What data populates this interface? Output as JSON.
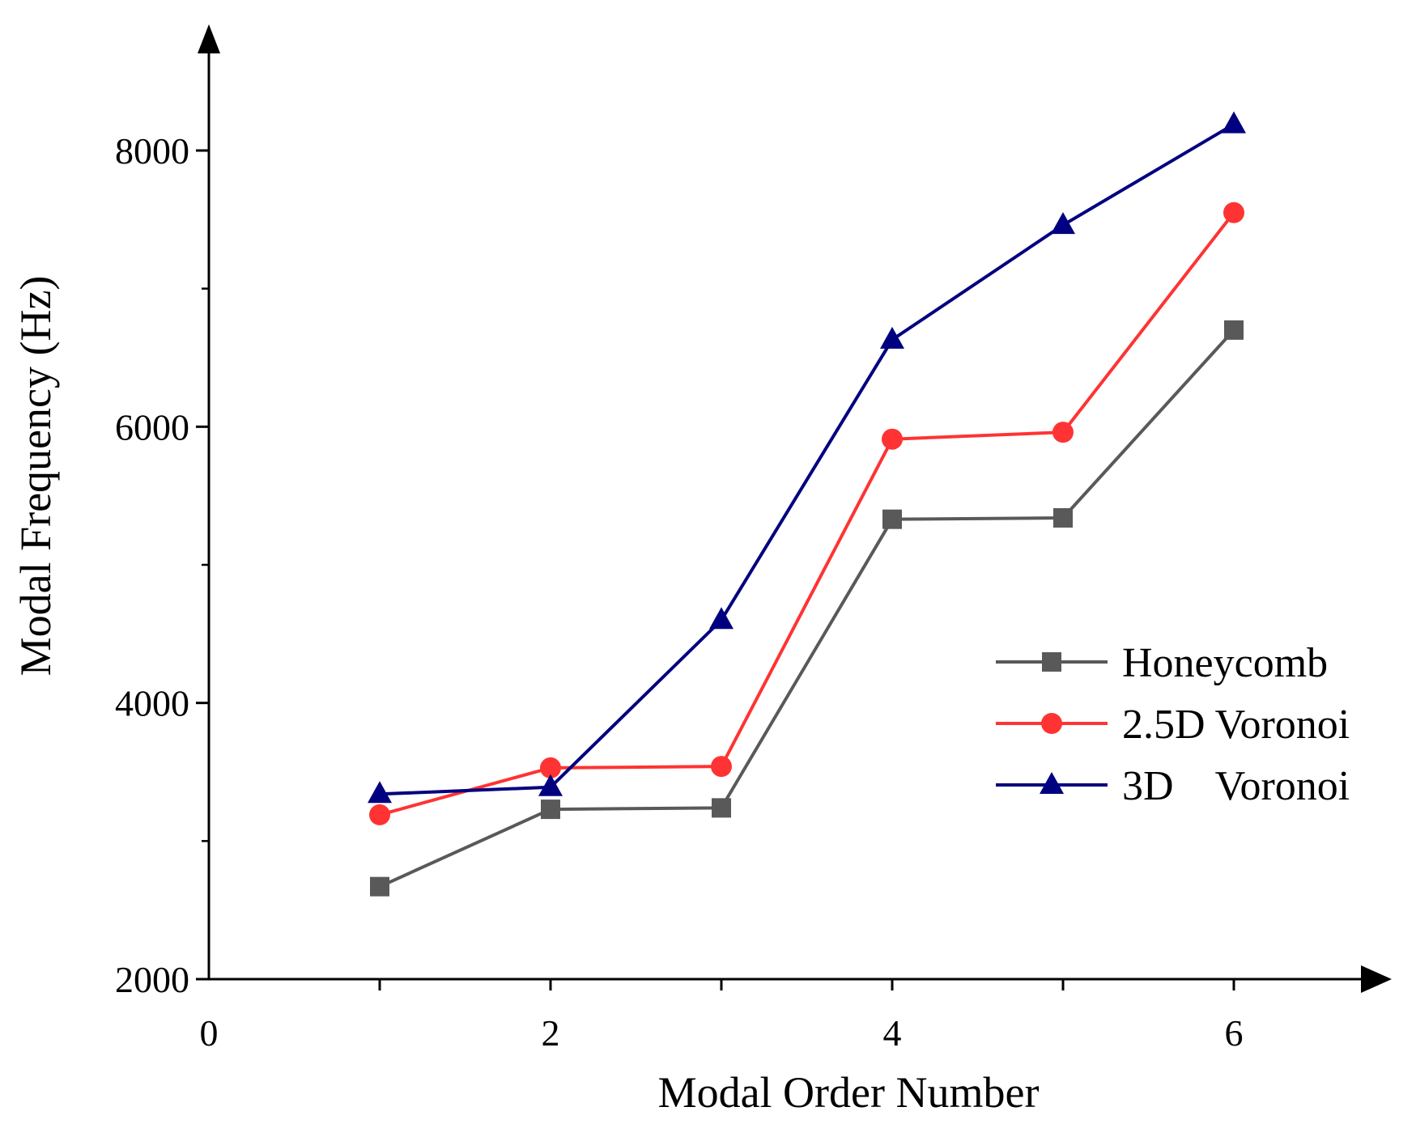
{
  "chart_data": {
    "type": "line",
    "title": "",
    "xlabel": "Modal Order Number",
    "ylabel": "Modal Frequency (Hz)",
    "xlim": [
      0,
      7
    ],
    "ylim": [
      2000,
      8800
    ],
    "x_ticks": [
      0,
      2,
      4,
      6
    ],
    "x_tick_labels": [
      "0",
      "2",
      "4",
      "6"
    ],
    "y_ticks": [
      2000,
      4000,
      6000,
      8000
    ],
    "y_tick_labels": [
      "2000",
      "4000",
      "6000",
      "8000"
    ],
    "grid": false,
    "legend_position": "right",
    "x": [
      1,
      2,
      3,
      4,
      5,
      6
    ],
    "series": [
      {
        "name": "Honeycomb",
        "marker": "square",
        "color": "#595959",
        "values": [
          2670,
          3230,
          3240,
          5330,
          5340,
          6700
        ]
      },
      {
        "name": "2.5D Voronoi",
        "marker": "circle",
        "color": "#ff3333",
        "values": [
          3190,
          3530,
          3540,
          5910,
          5960,
          7550
        ]
      },
      {
        "name": "3D    Voronoi",
        "marker": "triangle",
        "color": "#000080",
        "values": [
          3340,
          3390,
          4600,
          6630,
          7460,
          8190
        ]
      }
    ]
  }
}
